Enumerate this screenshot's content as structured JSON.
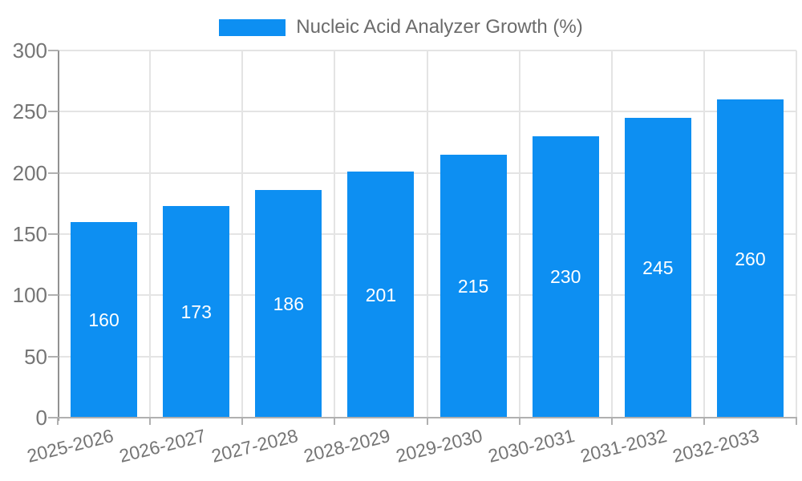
{
  "chart_data": {
    "type": "bar",
    "legend_label": "Nucleic Acid Analyzer Growth (%)",
    "legend_position": "top",
    "categories": [
      "2025-2026",
      "2026-2027",
      "2027-2028",
      "2028-2029",
      "2029-2030",
      "2030-2031",
      "2031-2032",
      "2032-2033"
    ],
    "values": [
      160,
      173,
      186,
      201,
      215,
      230,
      245,
      260
    ],
    "yticks": [
      0,
      50,
      100,
      150,
      200,
      250,
      300
    ],
    "ylim": [
      0,
      300
    ],
    "grid": true,
    "bar_labels_visible": true,
    "colors": {
      "bar": "#0d8ff2",
      "bar_label": "#ffffff",
      "axis_text": "#757575",
      "legend_text": "#6b6b6b",
      "gridline": "#e4e4e4",
      "y_axis_line": "#919191",
      "baseline": "#b0b0b0",
      "tick": "#b0b0b0"
    }
  }
}
